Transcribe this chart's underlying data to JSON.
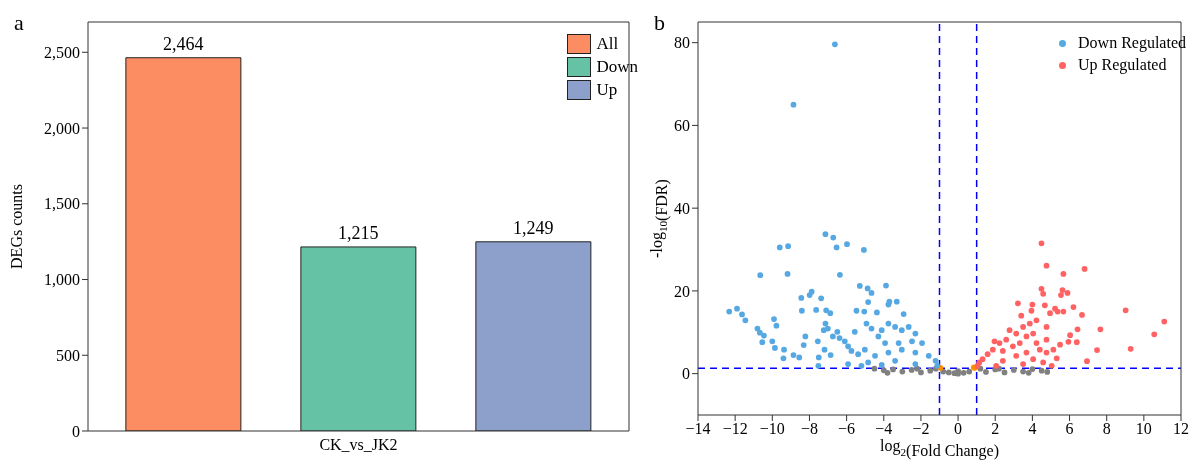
{
  "chart_data": [
    {
      "type": "bar",
      "annotations": [
        "a"
      ],
      "categories": [
        "CK_vs_JK2"
      ],
      "ylabel": "DEGs counts",
      "series": [
        {
          "name": "All",
          "color": "#fc8d62",
          "values": [
            2464
          ],
          "value_labels": [
            "2,464"
          ]
        },
        {
          "name": "Down",
          "color": "#66c2a5",
          "values": [
            1215
          ],
          "value_labels": [
            "1,215"
          ]
        },
        {
          "name": "Up",
          "color": "#8da0cb",
          "values": [
            1249
          ],
          "value_labels": [
            "1,249"
          ]
        }
      ],
      "ylim": [
        0,
        2700
      ],
      "yticks": [
        0,
        500,
        {
          "value": 1000,
          "label": "1,000"
        },
        {
          "value": 1500,
          "label": "1,500"
        },
        {
          "value": 2000,
          "label": "2,000"
        },
        {
          "value": 2500,
          "label": "2,500"
        }
      ],
      "legend": "top right"
    },
    {
      "type": "scatter",
      "annotations": [
        "b"
      ],
      "xlabel": "log$_{2}$(Fold Change)",
      "ylabel": "-log$_{10}$(FDR)",
      "marker": "circle",
      "legend": "top right",
      "series": [
        {
          "name": "Down Regulated",
          "color": "#56a8e2",
          "x": [
            -6.63,
            -8.86,
            -7.14,
            -6.72,
            -5.98,
            -6.54,
            -9.6,
            -9.15,
            -5.07,
            -10.65,
            -9.18,
            -6.36,
            -5.29,
            -3.88,
            -4.87,
            -4.66,
            -7.88,
            -7.99,
            -8.44,
            -7.37,
            -12.32,
            -11.9,
            -11.63,
            -11.45,
            -8.41,
            -7.64,
            -7.1,
            -6.88,
            -5.47,
            -5.05,
            -4.84,
            -3.7,
            -3.3,
            -3.75,
            -4.37,
            -2.93,
            -9.91,
            -9.78,
            -10.8,
            -10.67,
            -10.45,
            -10.54,
            -10.0,
            -9.86,
            -9.37,
            -9.4,
            -8.86,
            -8.55,
            -8.22,
            -8.31,
            -7.55,
            -7.5,
            -7.52,
            -7.19,
            -7.14,
            -7.23,
            -7.01,
            -6.86,
            -6.74,
            -6.5,
            -6.38,
            -6.1,
            -5.92,
            -5.74,
            -5.56,
            -5.38,
            -4.93,
            -4.66,
            -4.29,
            -4.11,
            -3.75,
            -3.39,
            -3.03,
            -2.66,
            -2.3,
            -2.48,
            -1.94,
            -3.2,
            -3.93,
            -5.02,
            -4.47,
            -3.75,
            -3.03,
            -2.3,
            -1.58,
            -1.21,
            -3.39,
            -4.84,
            -5.92,
            -4.11,
            -2.3,
            -1.12,
            -5.2
          ],
          "values": [
            79.6,
            65.0,
            33.7,
            32.9,
            31.3,
            30.5,
            30.5,
            30.8,
            29.9,
            23.8,
            24.1,
            23.9,
            21.2,
            21.3,
            20.6,
            19.5,
            19.8,
            19.0,
            18.3,
            18.2,
            15.0,
            15.7,
            14.3,
            12.9,
            15.2,
            15.4,
            15.3,
            14.6,
            15.2,
            15.0,
            17.3,
            17.4,
            17.4,
            16.7,
            14.8,
            14.4,
            13.2,
            11.6,
            10.9,
            9.9,
            9.2,
            7.6,
            7.8,
            6.2,
            5.8,
            3.7,
            4.5,
            3.9,
            9.0,
            6.9,
            7.8,
            3.9,
            1.9,
            5.8,
            12.1,
            10.5,
            10.9,
            4.5,
            9.0,
            10.1,
            8.6,
            7.8,
            6.6,
            5.5,
            10.1,
            4.7,
            12.1,
            10.9,
            9.0,
            10.5,
            12.1,
            11.3,
            10.5,
            11.3,
            9.7,
            7.8,
            7.4,
            7.4,
            7.4,
            5.8,
            4.3,
            5.1,
            5.8,
            5.1,
            4.3,
            3.1,
            3.1,
            2.7,
            2.3,
            2.1,
            2.3,
            1.9,
            1.9
          ]
        },
        {
          "name": "Up Regulated",
          "color": "#ff6262",
          "x": [
            4.49,
            4.76,
            6.81,
            5.67,
            4.49,
            4.58,
            5.62,
            5.89,
            5.54,
            3.22,
            4.0,
            4.67,
            6.21,
            9.02,
            5.22,
            5.36,
            5.67,
            6.67,
            4.95,
            11.1,
            7.66,
            10.56,
            9.29,
            7.48,
            6.94,
            6.43,
            6.03,
            5.94,
            6.39,
            5.49,
            5.13,
            5.31,
            5.04,
            4.76,
            4.76,
            4.76,
            4.22,
            3.86,
            3.5,
            3.13,
            2.77,
            2.59,
            2.23,
            1.96,
            1.87,
            1.59,
            1.32,
            1.14,
            1.05,
            2.41,
            2.95,
            3.32,
            3.68,
            4.04,
            4.22,
            4.4,
            3.68,
            3.13,
            2.41,
            4.04,
            4.58,
            3.5,
            2.05,
            3.4,
            3.95
          ],
          "values": [
            31.5,
            26.1,
            25.3,
            24.1,
            20.5,
            19.3,
            20.2,
            19.5,
            19.0,
            17.0,
            16.7,
            16.5,
            16.1,
            15.3,
            15.7,
            15.0,
            15.0,
            14.2,
            14.6,
            12.6,
            10.7,
            9.5,
            6.0,
            5.7,
            3.0,
            10.7,
            9.3,
            7.7,
            7.6,
            7.0,
            5.8,
            3.7,
            1.9,
            5.1,
            8.2,
            11.3,
            12.9,
            12.1,
            11.3,
            9.7,
            10.5,
            8.2,
            7.4,
            7.8,
            5.8,
            4.7,
            3.5,
            2.7,
            1.9,
            5.5,
            6.6,
            7.4,
            9.0,
            9.7,
            7.4,
            5.8,
            5.1,
            4.3,
            3.1,
            3.5,
            2.7,
            2.3,
            1.9,
            14.0,
            15.2
          ]
        },
        {
          "color": "#808080",
          "x": [
            -4.5,
            -4,
            -3.5,
            -3,
            -2.5,
            -2,
            -1.5,
            -0.8,
            -0.5,
            -0.2,
            0,
            0.3,
            0.6,
            1.5,
            2,
            2.5,
            3,
            3.5,
            4,
            4.5,
            4.8,
            -3.8,
            3.8,
            -2.2,
            2.2,
            1.2,
            -1.2,
            0
          ],
          "values": [
            1.2,
            0.8,
            1.0,
            0.5,
            0.9,
            0.3,
            0.7,
            0.5,
            0.3,
            0.1,
            0,
            0.2,
            0.5,
            0.4,
            1.0,
            0.3,
            0.9,
            0.5,
            1.1,
            0.7,
            0.4,
            0.2,
            0.2,
            1.2,
            1.2,
            1.2,
            1.2,
            0.6
          ]
        },
        {
          "color": "#ff8c00",
          "x": [
            -0.95,
            0.85,
            0.9
          ],
          "values": [
            1.4,
            1.5,
            1.4
          ]
        }
      ],
      "xlim": [
        -14,
        12
      ],
      "xticks": [
        -14,
        -12,
        -10,
        -8,
        -6,
        -4,
        -2,
        0,
        2,
        4,
        6,
        8,
        10,
        12
      ],
      "ylim": [
        -10,
        85
      ],
      "yticks": [
        0,
        20,
        40,
        60,
        80
      ],
      "ref_lines": [
        {
          "axis": "x",
          "value": -1,
          "color": "#0000ff",
          "line_style": "dashed"
        },
        {
          "axis": "x",
          "value": 1,
          "color": "#0000ff",
          "line_style": "dashed"
        },
        {
          "axis": "y",
          "value": 1.3,
          "color": "#0000ff",
          "line_style": "dashed"
        }
      ]
    }
  ]
}
